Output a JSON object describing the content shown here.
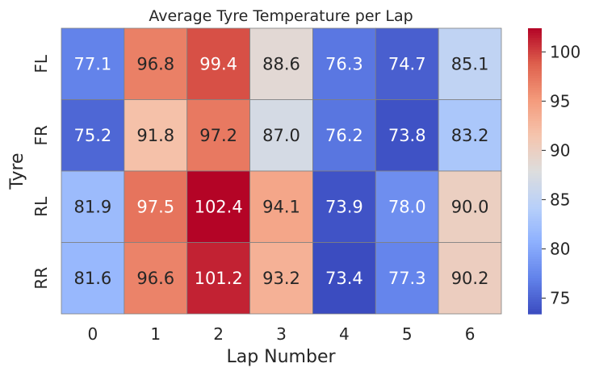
{
  "chart_data": {
    "type": "heatmap",
    "title": "Average Tyre Temperature per Lap",
    "xlabel": "Lap Number",
    "ylabel": "Tyre",
    "x_categories": [
      "0",
      "1",
      "2",
      "3",
      "4",
      "5",
      "6"
    ],
    "y_categories": [
      "FL",
      "FR",
      "RL",
      "RR"
    ],
    "values": [
      [
        77.1,
        96.8,
        99.4,
        88.6,
        76.3,
        74.7,
        85.1
      ],
      [
        75.2,
        91.8,
        97.2,
        87.0,
        76.2,
        73.8,
        83.2
      ],
      [
        81.9,
        97.5,
        102.4,
        94.1,
        73.9,
        78.0,
        90.0
      ],
      [
        81.6,
        96.6,
        101.2,
        93.2,
        73.4,
        77.3,
        90.2
      ]
    ],
    "value_format": "0.0",
    "colormap": "coolwarm",
    "vmin": 73.4,
    "vmax": 102.4,
    "colorbar_ticks": [
      75,
      80,
      85,
      90,
      95,
      100
    ],
    "grid": false,
    "cell_border_color": "#808080"
  }
}
